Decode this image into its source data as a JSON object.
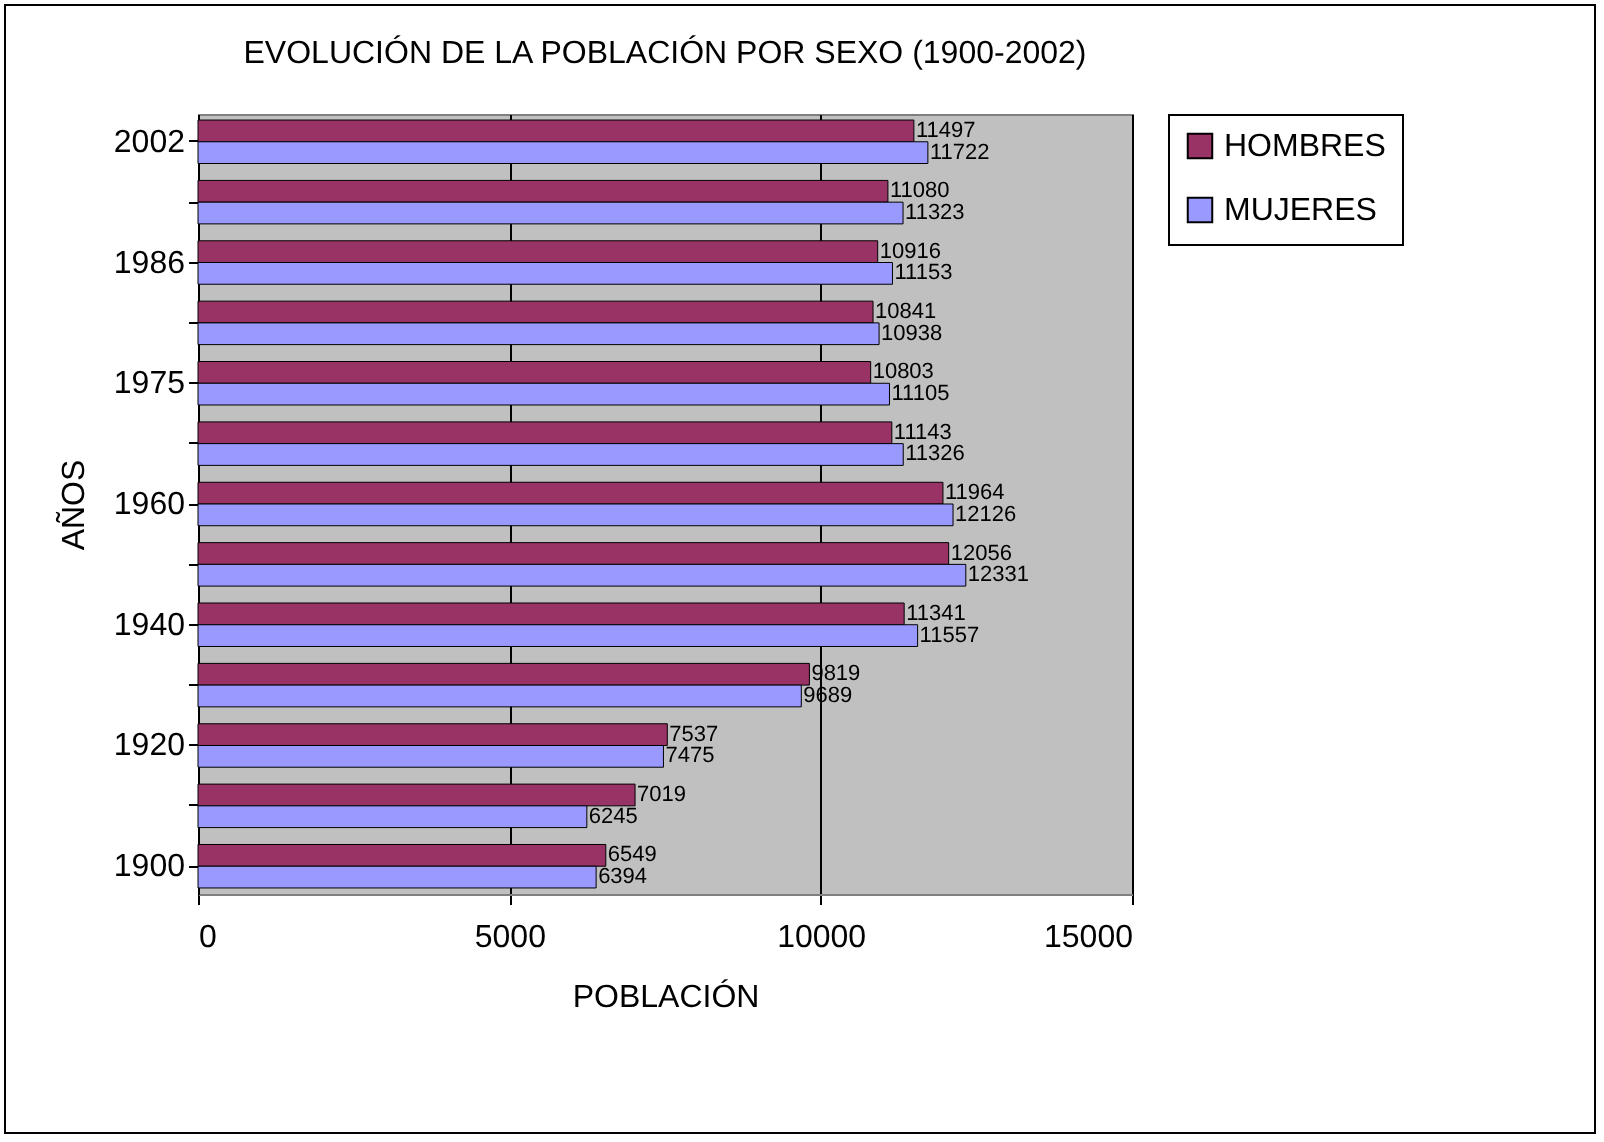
{
  "chart_data": {
    "type": "bar",
    "orientation": "horizontal",
    "title": "EVOLUCIÓN DE LA POBLACIÓN POR SEXO (1900-2002)",
    "xlabel": "POBLACIÓN",
    "ylabel": "AÑOS",
    "categories": [
      "2002",
      null,
      "1986",
      null,
      "1975",
      null,
      "1960",
      null,
      "1940",
      null,
      "1920",
      null,
      "1900"
    ],
    "series": [
      {
        "name": "HOMBRES",
        "color": "#993366",
        "values": [
          11497,
          11080,
          10916,
          10841,
          10803,
          11143,
          11964,
          12056,
          11341,
          9819,
          7537,
          7019,
          6549
        ]
      },
      {
        "name": "MUJERES",
        "color": "#9999ff",
        "values": [
          11722,
          11323,
          11153,
          10938,
          11105,
          11326,
          12126,
          12331,
          11557,
          9689,
          7475,
          6245,
          6394
        ]
      }
    ],
    "xlim": [
      0,
      15000
    ],
    "xticks": [
      0,
      5000,
      10000,
      15000
    ],
    "grid": "x",
    "legend": "right",
    "data_labels": true
  }
}
